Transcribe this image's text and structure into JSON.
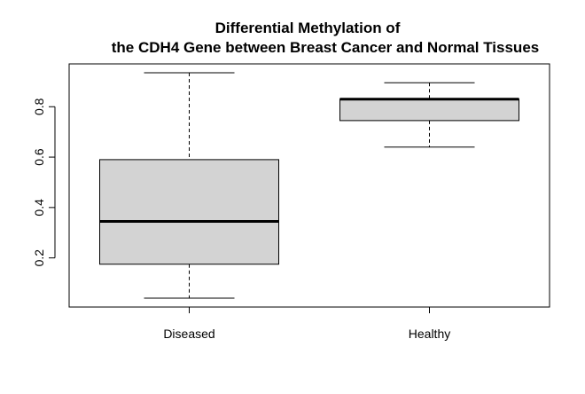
{
  "chart_data": {
    "type": "boxplot",
    "title_lines": [
      "Differential Methylation of",
      "the CDH4 Gene between Breast Cancer and Normal Tissues"
    ],
    "xlabel": "",
    "ylabel": "",
    "categories": [
      "Diseased",
      "Healthy"
    ],
    "boxes": [
      {
        "category": "Diseased",
        "whisker_low": 0.04,
        "q1": 0.175,
        "median": 0.345,
        "q3": 0.59,
        "whisker_high": 0.935
      },
      {
        "category": "Healthy",
        "whisker_low": 0.64,
        "q1": 0.745,
        "median": 0.83,
        "q3": 0.83,
        "whisker_high": 0.895
      }
    ],
    "yticks": [
      "0.2",
      "0.4",
      "0.6",
      "0.8"
    ],
    "ytick_values": [
      0.2,
      0.4,
      0.6,
      0.8
    ],
    "ylim": [
      0.005,
      0.97
    ],
    "grid": false,
    "box_fill": "#d3d3d3",
    "line_color": "#000000"
  }
}
